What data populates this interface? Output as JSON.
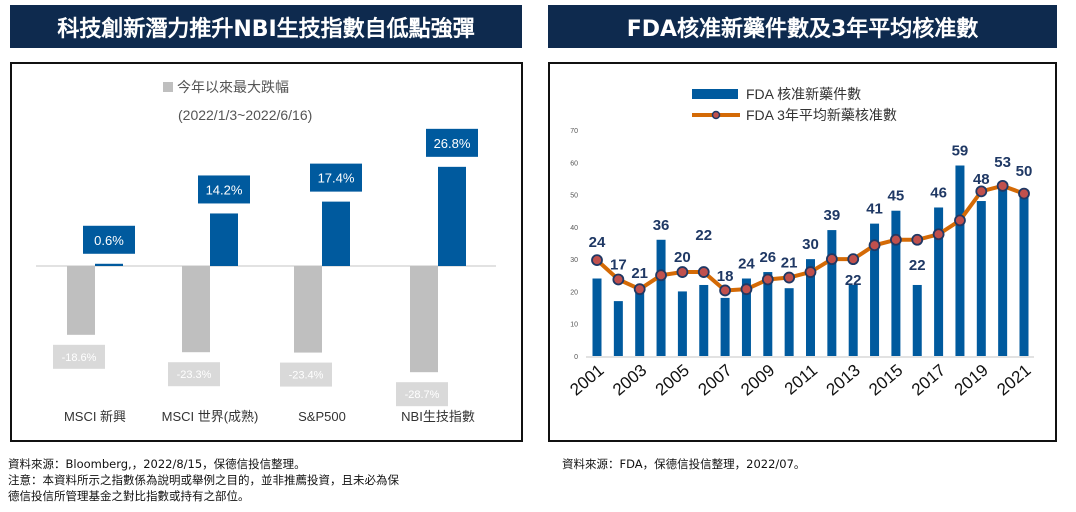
{
  "left": {
    "title": "科技創新潛力推升NBI生技指數自低點強彈"
  },
  "right": {
    "title": "FDA核准新藥件數及3年平均核准數"
  },
  "chart_data": [
    {
      "type": "bar",
      "categories": [
        "MSCI 新興",
        "MSCI 世界(成熟)",
        "S&P500",
        "NBI生技指數"
      ],
      "legend": "今年以來最大跌幅",
      "subtitle": "(2022/1/3~2022/6/16)",
      "series": [
        {
          "name": "今年以來最大跌幅",
          "values": [
            -18.6,
            -23.3,
            -23.4,
            -28.7
          ],
          "color": "#bfbfbf"
        },
        {
          "values": [
            0.6,
            14.2,
            17.4,
            26.8
          ],
          "color": "#005a9e"
        }
      ],
      "unit": "%",
      "grid": false
    },
    {
      "type": "bar+line",
      "x": [
        2001,
        2002,
        2003,
        2004,
        2005,
        2006,
        2007,
        2008,
        2009,
        2010,
        2011,
        2012,
        2013,
        2014,
        2015,
        2016,
        2017,
        2018,
        2019,
        2020,
        2021
      ],
      "xticks": [
        "2001",
        "2003",
        "2005",
        "2007",
        "2009",
        "2011",
        "2013",
        "2015",
        "2017",
        "2019",
        "2021"
      ],
      "ylim": [
        0,
        70
      ],
      "yticks": [
        0,
        10,
        20,
        30,
        40,
        50,
        60,
        70
      ],
      "series": [
        {
          "name": "FDA 核准新藥件數",
          "type": "bar",
          "color": "#005a9e",
          "values": [
            24,
            17,
            21,
            36,
            20,
            22,
            18,
            24,
            26,
            21,
            30,
            39,
            22,
            41,
            45,
            22,
            46,
            59,
            48,
            53,
            50
          ]
        },
        {
          "name": "FDA 3年平均新藥核准數",
          "type": "line",
          "color": "#d46a06",
          "marker": "#c0504d",
          "values": [
            29.7,
            23.7,
            20.7,
            25,
            26,
            26,
            20.3,
            20.7,
            23.7,
            24.3,
            26,
            30,
            30,
            34.3,
            36,
            36,
            37.7,
            42,
            51,
            52.7,
            50.3
          ]
        }
      ],
      "legend_position": "top-left",
      "grid": false
    }
  ],
  "notes": {
    "left_source": "資料來源：Bloomberg,，2022/8/15，保德信投信整理。",
    "left_note1": "注意：本資料所示之指數係為說明或舉例之目的，並非推薦投資，且未必為保",
    "left_note2": "德信投信所管理基金之對比指數或持有之部位。",
    "right_source": "資料來源：FDA，保德信投信整理，2022/07。"
  }
}
